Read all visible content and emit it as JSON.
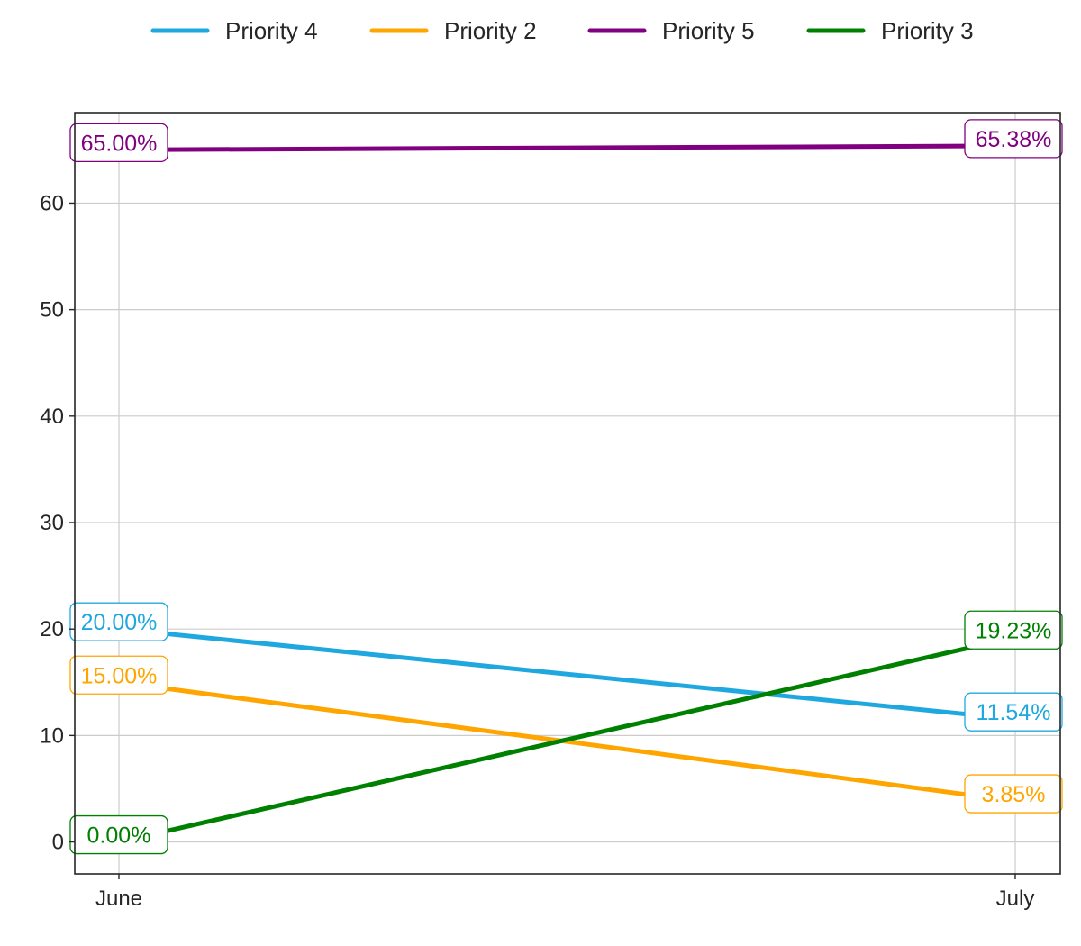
{
  "chart_data": {
    "type": "line",
    "categories": [
      "June",
      "July"
    ],
    "ylim": [
      -3,
      68.5
    ],
    "yticks": [
      0,
      10,
      20,
      30,
      40,
      50,
      60
    ],
    "grid": true,
    "legend_position": "top-center",
    "series": [
      {
        "name": "Priority 4",
        "color": "#1fa8e0",
        "values": [
          20.0,
          11.54
        ],
        "labels": [
          "20.00%",
          "11.54%"
        ]
      },
      {
        "name": "Priority 2",
        "color": "#ffa500",
        "values": [
          15.0,
          3.85
        ],
        "labels": [
          "15.00%",
          "3.85%"
        ]
      },
      {
        "name": "Priority 5",
        "color": "#800080",
        "values": [
          65.0,
          65.38
        ],
        "labels": [
          "65.00%",
          "65.38%"
        ]
      },
      {
        "name": "Priority 3",
        "color": "#008000",
        "values": [
          0.0,
          19.23
        ],
        "labels": [
          "0.00%",
          "19.23%"
        ]
      }
    ]
  }
}
